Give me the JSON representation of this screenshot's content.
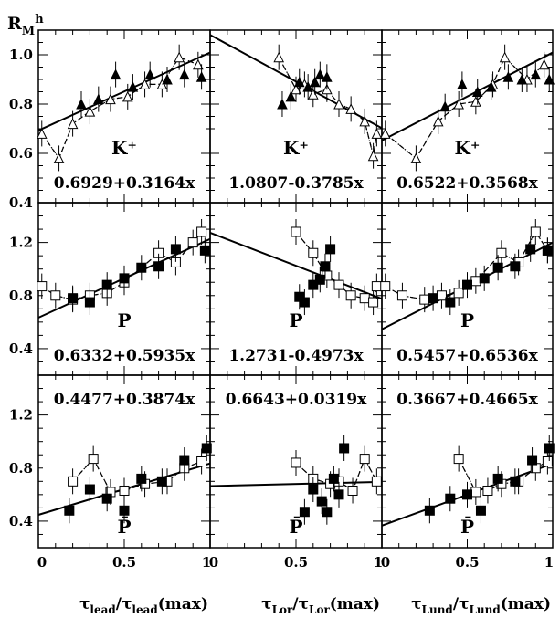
{
  "figure": {
    "ylabel": "R",
    "ylabel_sub": "M",
    "ylabel_sup": "h"
  },
  "chart_data": [
    {
      "type": "scatter",
      "row": 0,
      "col": 0,
      "particle": "K⁺",
      "fit_text": "0.6929+0.3164x",
      "fit": {
        "a": 0.6929,
        "b": 0.3164
      },
      "ylim": [
        0.4,
        1.1
      ],
      "xlim": [
        0,
        1
      ],
      "yticks": [
        "0.4",
        "0.6",
        "0.8",
        "1.0"
      ],
      "open": [
        [
          0.02,
          0.68
        ],
        [
          0.12,
          0.58
        ],
        [
          0.2,
          0.72
        ],
        [
          0.3,
          0.77
        ],
        [
          0.42,
          0.82
        ],
        [
          0.52,
          0.83
        ],
        [
          0.62,
          0.88
        ],
        [
          0.72,
          0.88
        ],
        [
          0.82,
          0.99
        ],
        [
          0.93,
          0.96
        ]
      ],
      "filled": [
        [
          0.25,
          0.8
        ],
        [
          0.35,
          0.82
        ],
        [
          0.45,
          0.92
        ],
        [
          0.55,
          0.87
        ],
        [
          0.65,
          0.92
        ],
        [
          0.75,
          0.9
        ],
        [
          0.85,
          0.92
        ],
        [
          0.95,
          0.91
        ]
      ],
      "marker": "triangle"
    },
    {
      "type": "scatter",
      "row": 0,
      "col": 1,
      "particle": "K⁺",
      "fit_text": "1.0807-0.3785x",
      "fit": {
        "a": 1.0807,
        "b": -0.3785
      },
      "ylim": [
        0.4,
        1.1
      ],
      "xlim": [
        0,
        1
      ],
      "open": [
        [
          0.4,
          0.99
        ],
        [
          0.5,
          0.86
        ],
        [
          0.55,
          0.88
        ],
        [
          0.6,
          0.84
        ],
        [
          0.68,
          0.86
        ],
        [
          0.75,
          0.8
        ],
        [
          0.82,
          0.78
        ],
        [
          0.9,
          0.73
        ],
        [
          0.95,
          0.59
        ],
        [
          0.97,
          0.68
        ]
      ],
      "filled": [
        [
          0.42,
          0.8
        ],
        [
          0.47,
          0.83
        ],
        [
          0.52,
          0.89
        ],
        [
          0.57,
          0.87
        ],
        [
          0.61,
          0.89
        ],
        [
          0.64,
          0.92
        ],
        [
          0.68,
          0.91
        ]
      ],
      "marker": "triangle"
    },
    {
      "type": "scatter",
      "row": 0,
      "col": 2,
      "particle": "K⁺",
      "fit_text": "0.6522+0.3568x",
      "fit": {
        "a": 0.6522,
        "b": 0.3568
      },
      "ylim": [
        0.4,
        1.1
      ],
      "xlim": [
        0,
        1
      ],
      "open": [
        [
          0.02,
          0.68
        ],
        [
          0.2,
          0.58
        ],
        [
          0.33,
          0.73
        ],
        [
          0.45,
          0.8
        ],
        [
          0.55,
          0.81
        ],
        [
          0.65,
          0.88
        ],
        [
          0.72,
          0.99
        ],
        [
          0.85,
          0.9
        ],
        [
          0.95,
          0.96
        ]
      ],
      "filled": [
        [
          0.37,
          0.79
        ],
        [
          0.47,
          0.88
        ],
        [
          0.56,
          0.85
        ],
        [
          0.64,
          0.87
        ],
        [
          0.74,
          0.91
        ],
        [
          0.82,
          0.9
        ],
        [
          0.9,
          0.92
        ],
        [
          0.98,
          0.9
        ]
      ],
      "marker": "triangle"
    },
    {
      "type": "scatter",
      "row": 1,
      "col": 0,
      "particle": "P",
      "fit_text": "0.6332+0.5935x",
      "fit": {
        "a": 0.6332,
        "b": 0.5935
      },
      "ylim": [
        0.2,
        1.5
      ],
      "xlim": [
        0,
        1
      ],
      "yticks": [
        "0.4",
        "0.8",
        "1.2"
      ],
      "open": [
        [
          0.02,
          0.87
        ],
        [
          0.1,
          0.8
        ],
        [
          0.2,
          0.77
        ],
        [
          0.3,
          0.8
        ],
        [
          0.4,
          0.82
        ],
        [
          0.5,
          0.9
        ],
        [
          0.7,
          1.12
        ],
        [
          0.8,
          1.05
        ],
        [
          0.9,
          1.2
        ],
        [
          0.95,
          1.28
        ]
      ],
      "filled": [
        [
          0.2,
          0.78
        ],
        [
          0.3,
          0.75
        ],
        [
          0.4,
          0.88
        ],
        [
          0.5,
          0.93
        ],
        [
          0.6,
          1.01
        ],
        [
          0.7,
          1.02
        ],
        [
          0.8,
          1.15
        ],
        [
          0.97,
          1.14
        ]
      ],
      "marker": "square"
    },
    {
      "type": "scatter",
      "row": 1,
      "col": 1,
      "particle": "P",
      "fit_text": "1.2731-0.4973x",
      "fit": {
        "a": 1.2731,
        "b": -0.4973
      },
      "ylim": [
        0.2,
        1.5
      ],
      "xlim": [
        0,
        1
      ],
      "open": [
        [
          0.5,
          1.28
        ],
        [
          0.6,
          1.12
        ],
        [
          0.68,
          0.95
        ],
        [
          0.75,
          0.88
        ],
        [
          0.82,
          0.8
        ],
        [
          0.9,
          0.78
        ],
        [
          0.95,
          0.75
        ],
        [
          0.97,
          0.87
        ]
      ],
      "filled": [
        [
          0.52,
          0.79
        ],
        [
          0.55,
          0.75
        ],
        [
          0.6,
          0.88
        ],
        [
          0.64,
          0.92
        ],
        [
          0.67,
          1.02
        ],
        [
          0.7,
          1.15
        ]
      ],
      "marker": "square"
    },
    {
      "type": "scatter",
      "row": 1,
      "col": 2,
      "particle": "P",
      "fit_text": "0.5457+0.6536x",
      "fit": {
        "a": 0.5457,
        "b": 0.6536
      },
      "ylim": [
        0.2,
        1.5
      ],
      "xlim": [
        0,
        1
      ],
      "open": [
        [
          0.02,
          0.87
        ],
        [
          0.12,
          0.8
        ],
        [
          0.25,
          0.77
        ],
        [
          0.35,
          0.8
        ],
        [
          0.45,
          0.82
        ],
        [
          0.55,
          0.91
        ],
        [
          0.7,
          1.12
        ],
        [
          0.8,
          1.05
        ],
        [
          0.9,
          1.28
        ],
        [
          0.97,
          1.14
        ]
      ],
      "filled": [
        [
          0.3,
          0.78
        ],
        [
          0.4,
          0.75
        ],
        [
          0.5,
          0.88
        ],
        [
          0.6,
          0.93
        ],
        [
          0.68,
          1.01
        ],
        [
          0.78,
          1.02
        ],
        [
          0.87,
          1.15
        ],
        [
          0.97,
          1.14
        ]
      ],
      "marker": "square"
    },
    {
      "type": "scatter",
      "row": 2,
      "col": 0,
      "particle": "P̄",
      "fit_text": "0.4477+0.3874x",
      "fit": {
        "a": 0.4477,
        "b": 0.3874
      },
      "ylim": [
        0.2,
        1.5
      ],
      "xlim": [
        0,
        1
      ],
      "yticks": [
        "0.4",
        "0.8",
        "1.2"
      ],
      "open": [
        [
          0.2,
          0.7
        ],
        [
          0.32,
          0.87
        ],
        [
          0.42,
          0.62
        ],
        [
          0.5,
          0.63
        ],
        [
          0.62,
          0.68
        ],
        [
          0.75,
          0.7
        ],
        [
          0.85,
          0.8
        ],
        [
          0.95,
          0.85
        ]
      ],
      "filled": [
        [
          0.18,
          0.48
        ],
        [
          0.3,
          0.64
        ],
        [
          0.4,
          0.57
        ],
        [
          0.5,
          0.48
        ],
        [
          0.6,
          0.72
        ],
        [
          0.72,
          0.7
        ],
        [
          0.85,
          0.86
        ],
        [
          0.98,
          0.95
        ]
      ],
      "marker": "square"
    },
    {
      "type": "scatter",
      "row": 2,
      "col": 1,
      "particle": "P̄",
      "fit_text": "0.6643+0.0319x",
      "fit": {
        "a": 0.6643,
        "b": 0.0319
      },
      "ylim": [
        0.2,
        1.5
      ],
      "xlim": [
        0,
        1
      ],
      "open": [
        [
          0.5,
          0.84
        ],
        [
          0.6,
          0.72
        ],
        [
          0.7,
          0.68
        ],
        [
          0.75,
          0.7
        ],
        [
          0.83,
          0.63
        ],
        [
          0.9,
          0.87
        ],
        [
          0.97,
          0.7
        ]
      ],
      "filled": [
        [
          0.55,
          0.47
        ],
        [
          0.6,
          0.64
        ],
        [
          0.65,
          0.55
        ],
        [
          0.68,
          0.47
        ],
        [
          0.72,
          0.72
        ],
        [
          0.75,
          0.6
        ],
        [
          0.78,
          0.95
        ]
      ],
      "marker": "square"
    },
    {
      "type": "scatter",
      "row": 2,
      "col": 2,
      "particle": "P̄",
      "fit_text": "0.3667+0.4665x",
      "fit": {
        "a": 0.3667,
        "b": 0.4665
      },
      "ylim": [
        0.2,
        1.5
      ],
      "xlim": [
        0,
        1
      ],
      "open": [
        [
          0.45,
          0.87
        ],
        [
          0.55,
          0.62
        ],
        [
          0.62,
          0.63
        ],
        [
          0.7,
          0.68
        ],
        [
          0.8,
          0.7
        ],
        [
          0.9,
          0.8
        ],
        [
          0.97,
          0.85
        ]
      ],
      "filled": [
        [
          0.28,
          0.48
        ],
        [
          0.4,
          0.57
        ],
        [
          0.5,
          0.6
        ],
        [
          0.58,
          0.48
        ],
        [
          0.68,
          0.72
        ],
        [
          0.78,
          0.7
        ],
        [
          0.88,
          0.86
        ],
        [
          0.98,
          0.95
        ]
      ],
      "marker": "square"
    }
  ],
  "xaxes": [
    {
      "ticks": [
        "0",
        "0.5",
        "1"
      ],
      "label_main": "τ",
      "label_sub": "lead",
      "label_sep": "/τ",
      "label_sub2": "lead",
      "label_end": "(max)"
    },
    {
      "ticks": [
        "0",
        "0.5",
        "1"
      ],
      "label_main": "τ",
      "label_sub": "Lor",
      "label_sep": "/τ",
      "label_sub2": "Lor",
      "label_end": "(max)"
    },
    {
      "ticks": [
        "0",
        "0.5",
        "1"
      ],
      "label_main": "τ",
      "label_sub": "Lund",
      "label_sep": "/τ",
      "label_sub2": "Lund",
      "label_end": "(max)"
    }
  ]
}
